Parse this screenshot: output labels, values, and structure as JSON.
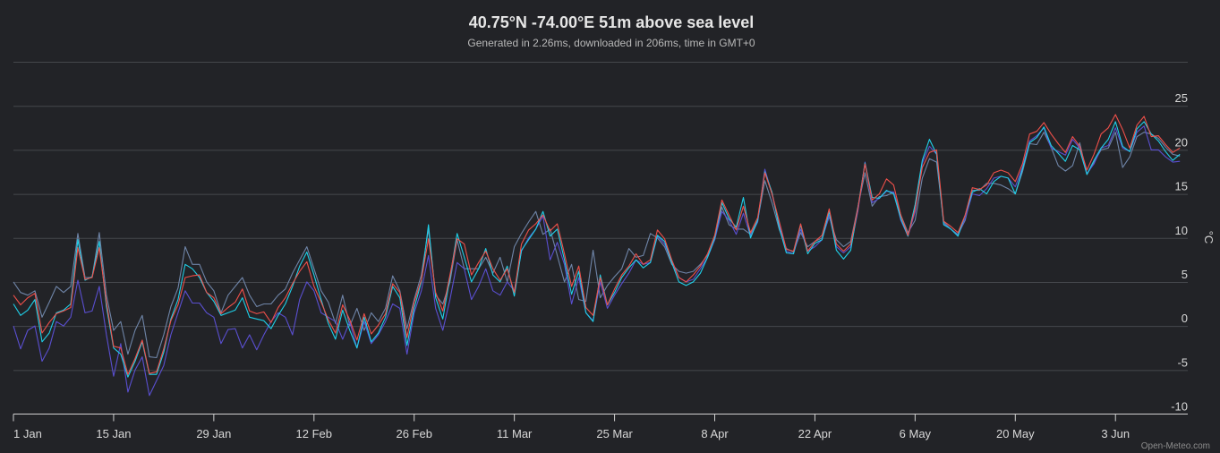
{
  "chart_data": {
    "type": "line",
    "title": "40.75°N -74.00°E 51m above sea level",
    "subtitle": "Generated in 2.26ms, downloaded in 206ms, time in GMT+0",
    "ylabel": "°C",
    "ylim": [
      -10,
      30
    ],
    "y_ticks": [
      "25",
      "20",
      "15",
      "10",
      "5",
      "0",
      "-5",
      "-10"
    ],
    "y_grid_values": [
      30,
      25,
      20,
      15,
      10,
      5,
      0,
      -5,
      -10
    ],
    "grid": true,
    "legend": "none",
    "x_ticks": [
      "1 Jan",
      "15 Jan",
      "29 Jan",
      "12 Feb",
      "26 Feb",
      "11 Mar",
      "25 Mar",
      "8 Apr",
      "22 Apr",
      "6 May",
      "20 May",
      "3 Jun"
    ],
    "x": [
      "1 Jan",
      "2 Jan",
      "3 Jan",
      "4 Jan",
      "5 Jan",
      "6 Jan",
      "7 Jan",
      "8 Jan",
      "9 Jan",
      "10 Jan",
      "11 Jan",
      "12 Jan",
      "13 Jan",
      "14 Jan",
      "15 Jan",
      "16 Jan",
      "17 Jan",
      "18 Jan",
      "19 Jan",
      "20 Jan",
      "21 Jan",
      "22 Jan",
      "23 Jan",
      "24 Jan",
      "25 Jan",
      "26 Jan",
      "27 Jan",
      "28 Jan",
      "29 Jan",
      "30 Jan",
      "31 Jan",
      "1 Feb",
      "2 Feb",
      "3 Feb",
      "4 Feb",
      "5 Feb",
      "6 Feb",
      "7 Feb",
      "8 Feb",
      "9 Feb",
      "10 Feb",
      "11 Feb",
      "12 Feb",
      "13 Feb",
      "14 Feb",
      "15 Feb",
      "16 Feb",
      "17 Feb",
      "18 Feb",
      "19 Feb",
      "20 Feb",
      "21 Feb",
      "22 Feb",
      "23 Feb",
      "24 Feb",
      "25 Feb",
      "26 Feb",
      "27 Feb",
      "28 Feb",
      "29 Feb",
      "1 Mar",
      "2 Mar",
      "3 Mar",
      "4 Mar",
      "5 Mar",
      "6 Mar",
      "7 Mar",
      "8 Mar",
      "9 Mar",
      "10 Mar",
      "11 Mar",
      "12 Mar",
      "13 Mar",
      "14 Mar",
      "15 Mar",
      "16 Mar",
      "17 Mar",
      "18 Mar",
      "19 Mar",
      "20 Mar",
      "21 Mar",
      "22 Mar",
      "23 Mar",
      "24 Mar",
      "25 Mar",
      "26 Mar",
      "27 Mar",
      "28 Mar",
      "29 Mar",
      "30 Mar",
      "31 Mar",
      "1 Apr",
      "2 Apr",
      "3 Apr",
      "4 Apr",
      "5 Apr",
      "6 Apr",
      "7 Apr",
      "8 Apr",
      "9 Apr",
      "10 Apr",
      "11 Apr",
      "12 Apr",
      "13 Apr",
      "14 Apr",
      "15 Apr",
      "16 Apr",
      "17 Apr",
      "18 Apr",
      "19 Apr",
      "20 Apr",
      "21 Apr",
      "22 Apr",
      "23 Apr",
      "24 Apr",
      "25 Apr",
      "26 Apr",
      "27 Apr",
      "28 Apr",
      "29 Apr",
      "30 Apr",
      "1 May",
      "2 May",
      "3 May",
      "4 May",
      "5 May",
      "6 May",
      "7 May",
      "8 May",
      "9 May",
      "10 May",
      "11 May",
      "12 May",
      "13 May",
      "14 May",
      "15 May",
      "16 May",
      "17 May",
      "18 May",
      "19 May",
      "20 May",
      "21 May",
      "22 May",
      "23 May",
      "24 May",
      "25 May",
      "26 May",
      "27 May",
      "28 May",
      "29 May",
      "30 May",
      "31 May",
      "1 Jun",
      "2 Jun",
      "3 Jun",
      "4 Jun",
      "5 Jun",
      "6 Jun",
      "7 Jun",
      "8 Jun",
      "9 Jun",
      "10 Jun",
      "11 Jun",
      "12 Jun"
    ],
    "series": [
      {
        "color": "#6f85a8",
        "values": [
          5,
          3.8,
          3.5,
          4,
          1,
          2.7,
          4.5,
          3.8,
          4.5,
          10.5,
          5.5,
          5.5,
          10.6,
          3.5,
          -0.5,
          0.5,
          -3.2,
          -0.5,
          1.2,
          -3.5,
          -3.6,
          -1,
          2.2,
          4.3,
          9,
          7,
          7,
          5,
          4,
          1.5,
          3.5,
          4.5,
          5.5,
          3.5,
          2.2,
          2.5,
          2.5,
          3.5,
          4.2,
          6,
          7.5,
          9,
          6.5,
          4,
          2.7,
          0.3,
          3.5,
          0,
          2,
          -0.5,
          1.5,
          0.5,
          2,
          5.7,
          4,
          -0.3,
          3,
          5.8,
          11,
          3.5,
          2.5,
          5,
          9.8,
          6.5,
          6.5,
          6.5,
          7.8,
          6,
          7.8,
          5,
          9,
          10.5,
          11.8,
          13,
          10.4,
          11,
          8,
          5,
          7,
          3,
          2.8,
          8.6,
          3.2,
          4.6,
          5.6,
          6.5,
          8.8,
          7.8,
          8,
          10.5,
          10,
          9,
          7,
          6.2,
          6,
          6.2,
          7,
          8,
          9.8,
          13.5,
          11.5,
          11,
          11,
          10.4,
          12,
          16.5,
          14,
          11,
          8.8,
          8.4,
          10.6,
          9,
          9.6,
          10,
          12.4,
          9.8,
          9,
          9.6,
          13.5,
          17.4,
          13.6,
          14.7,
          14.8,
          15.2,
          12.6,
          10.6,
          12,
          16.8,
          19,
          18.6,
          11.8,
          11,
          10.4,
          12,
          15.4,
          15.4,
          16.2,
          16.2,
          16,
          15.6,
          15,
          17.5,
          20.7,
          20.6,
          22,
          20.3,
          18.2,
          17.6,
          18.2,
          20.8,
          17.2,
          18.6,
          20,
          20.2,
          22,
          18,
          19.2,
          21.5,
          22,
          21.8,
          21.3,
          20.3,
          19.5,
          19.3
        ]
      },
      {
        "color": "#5a4fd0",
        "values": [
          0,
          -2.6,
          -0.5,
          0,
          -4,
          -2.5,
          0.5,
          0,
          1,
          5.2,
          1.5,
          1.7,
          4.5,
          -1,
          -5.7,
          -2,
          -7.5,
          -5,
          -3.5,
          -7.9,
          -6.2,
          -4.5,
          -1,
          1.5,
          4,
          2.6,
          2.6,
          1.5,
          1,
          -2,
          -0.4,
          -0.3,
          -2.5,
          -1,
          -2.7,
          -1,
          0.5,
          1.5,
          1,
          -1,
          3,
          5,
          4,
          1.5,
          1,
          0.5,
          -1.5,
          0.5,
          -2.5,
          0.5,
          -2,
          -1,
          0.5,
          2.5,
          2,
          -3.2,
          1.5,
          4,
          8,
          2,
          -0.5,
          3,
          7.2,
          6.5,
          3,
          4.5,
          6.5,
          4,
          3.5,
          5,
          4,
          8.5,
          10,
          11,
          12.5,
          7.5,
          9.5,
          7,
          2.5,
          5.5,
          1.5,
          0.6,
          5,
          2,
          3.5,
          4.8,
          6,
          7.5,
          7,
          7.2,
          10.2,
          9.3,
          7.3,
          5.5,
          5,
          5.3,
          6.5,
          7.8,
          9.8,
          13,
          12,
          10.4,
          12.8,
          10.2,
          11.8,
          17.8,
          15,
          11.5,
          8.5,
          8.2,
          11,
          8.5,
          9,
          9.8,
          12.6,
          9,
          8.3,
          9,
          13,
          18.6,
          14,
          14.5,
          15.3,
          15.2,
          12,
          10.2,
          13,
          18.5,
          20.4,
          19.5,
          11.6,
          11,
          10.3,
          12.2,
          15,
          14.8,
          15.6,
          16.8,
          17,
          16.8,
          15.8,
          18,
          21,
          21.6,
          22.5,
          20.2,
          19.8,
          19.4,
          21.2,
          20.2,
          17.3,
          18.4,
          20.2,
          20.5,
          22.5,
          20.2,
          19.8,
          22,
          22.7,
          20,
          20,
          19.2,
          18.6,
          18.7
        ]
      },
      {
        "color": "#1fd0e8",
        "values": [
          2.5,
          1.2,
          1.8,
          3,
          -1.8,
          -0.8,
          1.5,
          1.8,
          2.5,
          9.8,
          5.2,
          5.6,
          9.6,
          2.2,
          -2.5,
          -3.2,
          -5.8,
          -4,
          -1.8,
          -5.5,
          -5.5,
          -3,
          0.8,
          3,
          7,
          6.5,
          5.5,
          3.8,
          2.8,
          1.2,
          1.5,
          1.8,
          3.2,
          1,
          0.8,
          0.6,
          -0.3,
          1.2,
          2.5,
          4.5,
          6.8,
          8.4,
          5.8,
          3,
          0.3,
          -1.5,
          1.8,
          -0.5,
          -2.5,
          1,
          -1.8,
          -0.8,
          1,
          4.5,
          3.2,
          -2.2,
          2,
          5,
          11.5,
          3.2,
          0.8,
          5.5,
          10.5,
          7.8,
          5,
          6.5,
          8.8,
          5.8,
          5,
          6.8,
          3.4,
          8.6,
          9.8,
          11,
          13,
          10.2,
          11,
          7.5,
          3.6,
          6.2,
          1.5,
          0.5,
          5.8,
          2.4,
          3.8,
          5.5,
          6.6,
          7.5,
          6.6,
          7.2,
          10.3,
          9.6,
          7.2,
          5,
          4.6,
          5,
          6,
          7.8,
          10,
          14,
          12.2,
          11.2,
          14.6,
          10,
          12,
          17.5,
          15.2,
          11.2,
          8.3,
          8.2,
          11.5,
          8.2,
          9.4,
          9.8,
          13,
          8.6,
          7.6,
          8.6,
          13.4,
          18.5,
          14.6,
          14.5,
          15.4,
          15,
          12.2,
          10.2,
          13.8,
          18.8,
          21.2,
          19.5,
          11.5,
          11,
          10.2,
          12.6,
          15.2,
          15.6,
          15,
          16.4,
          17,
          16.8,
          15,
          17.8,
          20.8,
          21.4,
          22.6,
          20.5,
          19.6,
          18.7,
          20.5,
          20,
          17.2,
          18.8,
          20.2,
          21.2,
          23.2,
          20.4,
          19.8,
          22.4,
          23.2,
          21.8,
          21,
          19.8,
          18.8,
          19.5
        ]
      },
      {
        "color": "#f0504a",
        "values": [
          3.5,
          2.4,
          3.2,
          3.7,
          -0.8,
          0.4,
          1.4,
          1.7,
          2.1,
          8.9,
          5.3,
          5.5,
          8.9,
          2.7,
          -2.3,
          -2.5,
          -5.5,
          -3.7,
          -1.6,
          -5.4,
          -5.2,
          -2.6,
          0.6,
          2.4,
          5.5,
          5.7,
          5.8,
          3.8,
          3.2,
          1.4,
          2.1,
          2.7,
          4.2,
          1.7,
          1.4,
          1.6,
          0.4,
          2.1,
          3.2,
          4.8,
          6.2,
          7.3,
          4.5,
          2.7,
          0.7,
          -0.8,
          2.4,
          0.7,
          -1.6,
          1.4,
          -0.9,
          0.1,
          1.4,
          4.8,
          3.8,
          -1.3,
          2.7,
          5.2,
          9.9,
          3.8,
          1.7,
          5.8,
          9.9,
          9.3,
          5.8,
          7.2,
          8.5,
          6.5,
          5.2,
          6.5,
          3.8,
          9.3,
          10.9,
          11.6,
          12.6,
          10.8,
          11.6,
          8.2,
          4.5,
          6.8,
          2.1,
          1.2,
          5.5,
          2.4,
          4.2,
          5.8,
          6.8,
          8.2,
          7.0,
          7.5,
          10.9,
          9.9,
          7.5,
          5.5,
          5.0,
          5.8,
          6.8,
          8.2,
          10.3,
          14.3,
          12.6,
          10.9,
          13.6,
          10.6,
          12.3,
          17.4,
          15,
          11.9,
          8.7,
          8.5,
          11.6,
          8.5,
          9.6,
          10.3,
          13.3,
          9.3,
          8.5,
          9.3,
          13.3,
          18.4,
          14.3,
          15,
          16.7,
          16,
          12.6,
          10.3,
          13.3,
          18,
          19.7,
          20,
          11.9,
          11.3,
          10.6,
          12.6,
          15.7,
          15.5,
          16,
          17.4,
          17.7,
          17.4,
          16.4,
          18.4,
          21.8,
          22.1,
          23.1,
          21.8,
          20.7,
          19.7,
          21.5,
          20.4,
          17.7,
          19.5,
          21.8,
          22.5,
          24,
          22.3,
          20.2,
          22.8,
          23.8,
          21.5,
          21.6,
          20.6,
          19.7,
          20.2
        ]
      }
    ]
  },
  "credit": "Open-Meteo.com"
}
